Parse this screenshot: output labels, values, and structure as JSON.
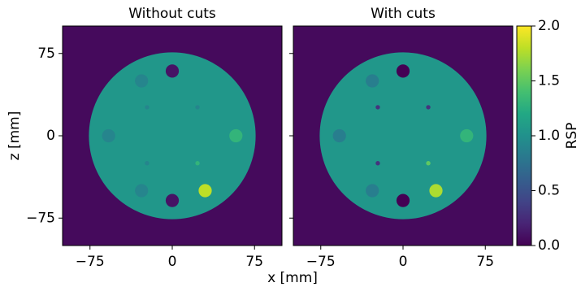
{
  "chart_data": {
    "type": "heatmap",
    "xlabel": "x [mm]",
    "ylabel": "z [mm]",
    "xlim": [
      -100,
      100
    ],
    "ylim": [
      -100,
      100
    ],
    "xticks": [
      {
        "value": -75,
        "label": "−75"
      },
      0,
      75
    ],
    "yticks": [
      {
        "value": -75,
        "label": "−75"
      },
      0,
      75
    ],
    "colormap": "viridis",
    "background": 0.05,
    "phantom": {
      "r": 76,
      "value": 1.05
    },
    "panels": [
      {
        "title": "Without cuts",
        "inserts": [
          {
            "x": 0,
            "z": 59,
            "r": 6,
            "value": 0.1
          },
          {
            "x": 0,
            "z": -59,
            "r": 6,
            "value": 0.1
          },
          {
            "x": -28,
            "z": 50,
            "r": 6,
            "value": 0.9
          },
          {
            "x": -58,
            "z": 0,
            "r": 6,
            "value": 0.9
          },
          {
            "x": -28,
            "z": -50,
            "r": 6,
            "value": 0.9
          },
          {
            "x": 58,
            "z": 0,
            "r": 6,
            "value": 1.3
          },
          {
            "x": 30,
            "z": -50,
            "r": 6,
            "value": 1.8
          },
          {
            "x": -23,
            "z": 26,
            "r": 2,
            "value": 0.9
          },
          {
            "x": 23,
            "z": 26,
            "r": 2,
            "value": 0.9
          },
          {
            "x": -23,
            "z": -25,
            "r": 2,
            "value": 0.9
          },
          {
            "x": 23,
            "z": -25,
            "r": 2,
            "value": 1.3
          }
        ]
      },
      {
        "title": "With cuts",
        "inserts": [
          {
            "x": 0,
            "z": 59,
            "r": 6,
            "value": 0.0
          },
          {
            "x": 0,
            "z": -59,
            "r": 6,
            "value": 0.0
          },
          {
            "x": -28,
            "z": 50,
            "r": 6,
            "value": 0.85
          },
          {
            "x": -58,
            "z": 0,
            "r": 6,
            "value": 0.85
          },
          {
            "x": -28,
            "z": -50,
            "r": 6,
            "value": 0.85
          },
          {
            "x": 58,
            "z": 0,
            "r": 6,
            "value": 1.3
          },
          {
            "x": 30,
            "z": -50,
            "r": 6,
            "value": 1.75
          },
          {
            "x": -23,
            "z": 26,
            "r": 2,
            "value": 0.3
          },
          {
            "x": 23,
            "z": 26,
            "r": 2,
            "value": 0.3
          },
          {
            "x": -23,
            "z": -25,
            "r": 2,
            "value": 0.3
          },
          {
            "x": 23,
            "z": -25,
            "r": 2,
            "value": 1.5
          }
        ]
      }
    ],
    "colorbar": {
      "label": "RSP",
      "lim": [
        0,
        2
      ],
      "ticks": [
        {
          "value": 0,
          "label": "0.0"
        },
        {
          "value": 0.5,
          "label": "0.5"
        },
        {
          "value": 1,
          "label": "1.0"
        },
        {
          "value": 1.5,
          "label": "1.5"
        },
        {
          "value": 2,
          "label": "2.0"
        }
      ]
    }
  }
}
